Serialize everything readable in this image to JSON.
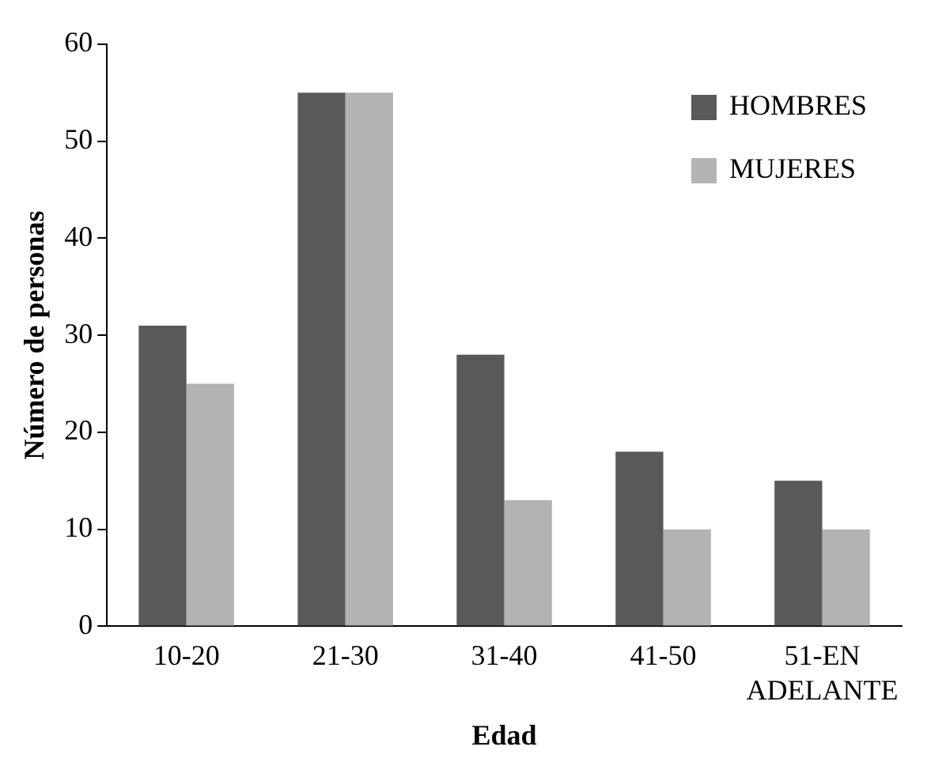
{
  "chart_data": {
    "type": "bar",
    "xlabel": "Edad",
    "ylabel": "Número de personas",
    "categories": [
      "10-20",
      "21-30",
      "31-40",
      "41-50",
      "51-EN ADELANTE"
    ],
    "series": [
      {
        "name": "HOMBRES",
        "color": "#595959",
        "values": [
          31,
          55,
          28,
          18,
          15
        ]
      },
      {
        "name": "MUJERES",
        "color": "#b3b3b3",
        "values": [
          25,
          55,
          13,
          10,
          10
        ]
      }
    ],
    "ylim": [
      0,
      60
    ],
    "yticks": [
      0,
      10,
      20,
      30,
      40,
      50,
      60
    ],
    "grid": false,
    "legend": "top right"
  }
}
